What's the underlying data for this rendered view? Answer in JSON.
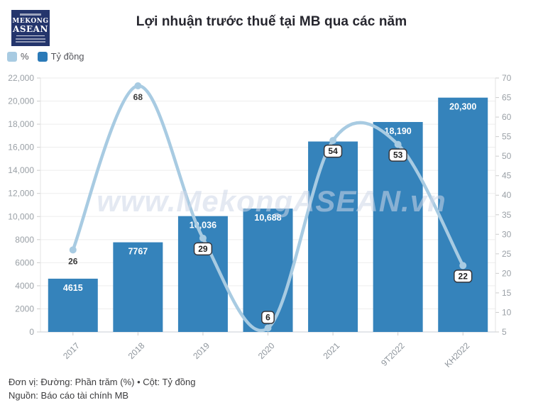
{
  "header": {
    "title": "Lợi nhuận trước thuế tại MB qua các năm"
  },
  "brand": {
    "line1": "MEKONG",
    "line2": "ASEAN"
  },
  "legend": {
    "items": [
      {
        "label": "%",
        "color": "#a8cbe2"
      },
      {
        "label": "Tỷ đồng",
        "color": "#2b7ab8"
      }
    ]
  },
  "watermark": "www.MekongASEAN.vn",
  "footer": {
    "line1": "Đơn vị: Đường: Phần trăm (%) • Cột: Tỷ đồng",
    "line2": "Nguồn: Báo cáo tài chính MB"
  },
  "chart_data": {
    "type": "bar",
    "subtype": "combo-bar-line-dual-axis",
    "title": "Lợi nhuận trước thuế tại MB qua các năm",
    "categories": [
      "2017",
      "2018",
      "2019",
      "2020",
      "2021",
      "9T2022",
      "KH2022"
    ],
    "series": [
      {
        "name": "Tỷ đồng",
        "type": "bar",
        "axis": "left",
        "color": "#3583bb",
        "values": [
          4615,
          7767,
          10036,
          10688,
          16500,
          18190,
          20300
        ],
        "labels": [
          "4615",
          "7767",
          "10,036",
          "10,688",
          "",
          "18,190",
          "20,300"
        ]
      },
      {
        "name": "%",
        "type": "line",
        "axis": "right",
        "color": "#a8cbe2",
        "values": [
          26,
          68,
          29,
          6,
          54,
          53,
          22
        ],
        "labels": [
          "26",
          "68",
          "29",
          "6",
          "54",
          "53",
          "22"
        ],
        "label_style": [
          "plain",
          "plain",
          "bubble",
          "bubble",
          "bubble",
          "bubble",
          "bubble"
        ],
        "label_position": [
          "below",
          "below",
          "below",
          "above",
          "below",
          "below",
          "below"
        ]
      }
    ],
    "left_axis": {
      "min": 0,
      "max": 22000,
      "step": 2000,
      "tick_labels": [
        "0",
        "2000",
        "4000",
        "6000",
        "8000",
        "10,000",
        "12,000",
        "14,000",
        "16,000",
        "18,000",
        "20,000",
        "22,000"
      ]
    },
    "right_axis": {
      "min": 5,
      "max": 70,
      "step": 5
    },
    "grid": "horizontal",
    "legend_position": "top-left"
  }
}
